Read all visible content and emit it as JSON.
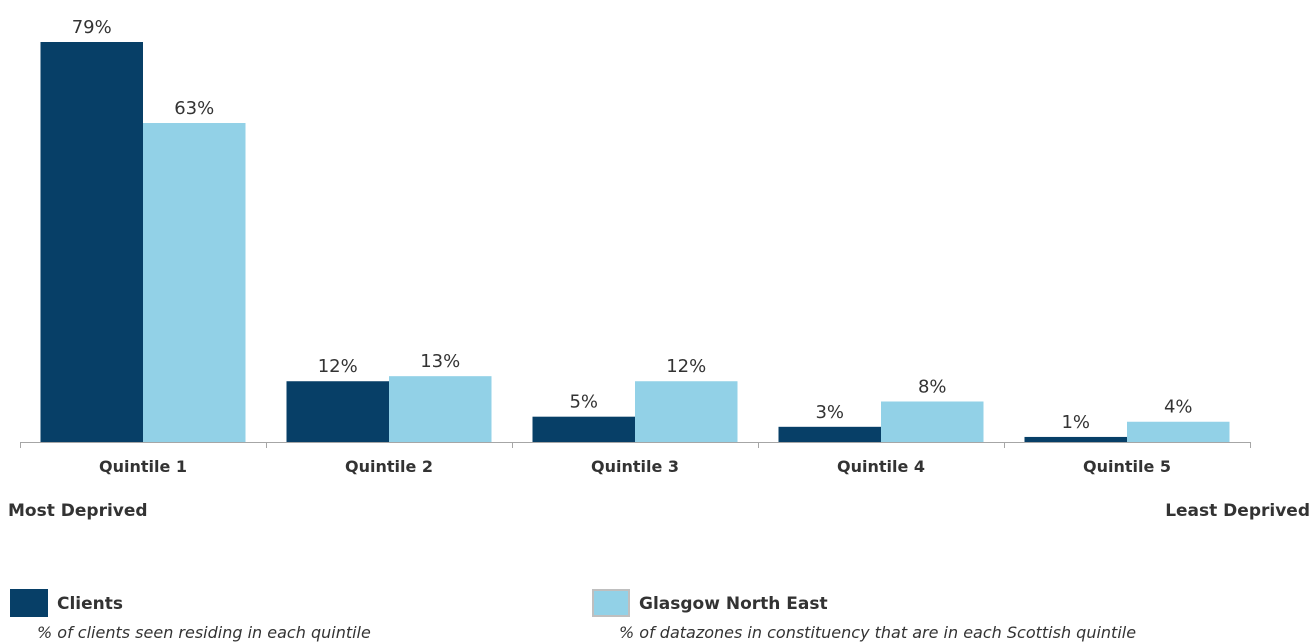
{
  "chart_data": {
    "type": "bar",
    "categories": [
      "Quintile 1",
      "Quintile 2",
      "Quintile 3",
      "Quintile 4",
      "Quintile 5"
    ],
    "series": [
      {
        "name": "Clients",
        "description": "% of clients seen residing in each quintile",
        "color": "#073f67",
        "values": [
          79,
          12,
          5,
          3,
          1
        ],
        "labels": [
          "79%",
          "12%",
          "5%",
          "3%",
          "1%"
        ]
      },
      {
        "name": "Glasgow North East",
        "description": "% of datazones in constituency that are in each Scottish quintile",
        "color": "#92d1e7",
        "values": [
          63,
          13,
          12,
          8,
          4
        ],
        "labels": [
          "63%",
          "13%",
          "12%",
          "8%",
          "4%"
        ]
      }
    ],
    "ylim": [
      0,
      79
    ],
    "grid": false,
    "legend": "bottom",
    "axis_end_labels": {
      "left": "Most Deprived",
      "right": "Least Deprived"
    }
  }
}
